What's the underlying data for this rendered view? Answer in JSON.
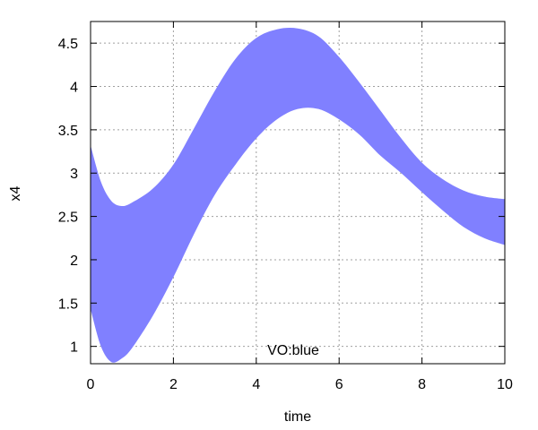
{
  "chart_data": {
    "type": "area",
    "xlabel": "time",
    "ylabel": "x4",
    "xlim": [
      0,
      10
    ],
    "ylim": [
      0.8,
      4.75
    ],
    "x_ticks": [
      0,
      2,
      4,
      6,
      8,
      10
    ],
    "x_tick_labels": [
      "0",
      "2",
      "4",
      "6",
      "8",
      "10"
    ],
    "y_ticks": [
      1,
      1.5,
      2,
      2.5,
      3,
      3.5,
      4,
      4.5
    ],
    "y_tick_labels": [
      "1",
      "1.5",
      "2",
      "2.5",
      "3",
      "3.5",
      "4",
      "4.5"
    ],
    "grid": true,
    "annotation": "VO:blue",
    "fill_color": "#8080ff",
    "band": {
      "x": [
        0,
        0.25,
        0.5,
        0.75,
        1,
        1.5,
        2,
        2.5,
        3,
        3.5,
        4,
        4.5,
        5,
        5.5,
        6,
        6.5,
        7,
        7.5,
        8,
        8.5,
        9,
        9.5,
        10
      ],
      "upper": [
        3.32,
        2.9,
        2.68,
        2.62,
        2.66,
        2.82,
        3.1,
        3.52,
        3.95,
        4.32,
        4.56,
        4.66,
        4.67,
        4.58,
        4.34,
        4.04,
        3.72,
        3.4,
        3.12,
        2.93,
        2.8,
        2.73,
        2.7
      ],
      "lower": [
        1.43,
        1.0,
        0.82,
        0.86,
        0.98,
        1.35,
        1.8,
        2.3,
        2.75,
        3.1,
        3.4,
        3.62,
        3.74,
        3.74,
        3.62,
        3.44,
        3.2,
        3.0,
        2.78,
        2.57,
        2.38,
        2.25,
        2.17
      ]
    }
  }
}
